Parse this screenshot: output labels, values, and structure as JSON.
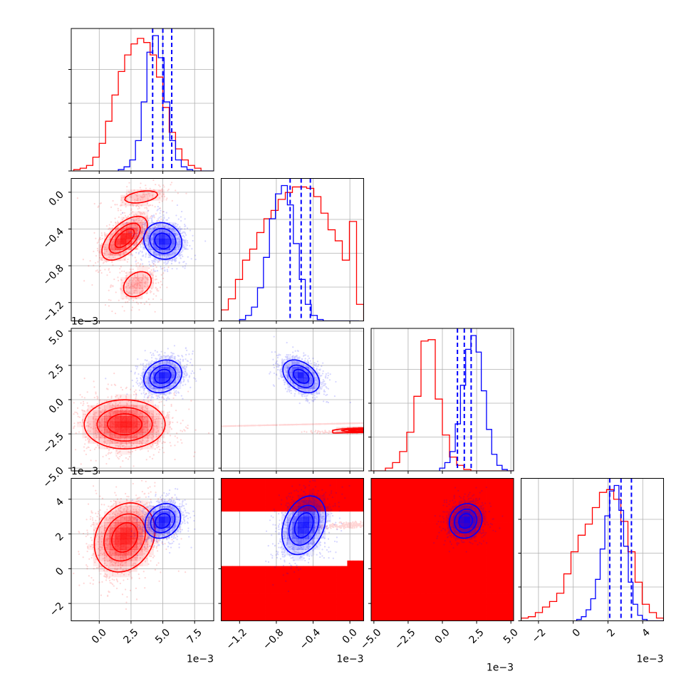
{
  "chart_data": {
    "type": "corner",
    "colors": {
      "red_series": "#ff0000",
      "blue_series": "#0000ff",
      "grid": "#b0b0b0",
      "frame": "#000000"
    },
    "grid": true,
    "n_params": 4,
    "params": [
      {
        "range": [
          -2.2,
          9.0
        ],
        "ticks": [
          0.0,
          2.5,
          5.0,
          7.5
        ],
        "tick_labels": [
          "0.0",
          "2.5",
          "5.0",
          "7.5"
        ],
        "offset": "1e−3"
      },
      {
        "range": [
          -1.4,
          0.15
        ],
        "ticks": [
          -1.2,
          -0.8,
          -0.4,
          0.0
        ],
        "tick_labels": [
          "−1.2",
          "−0.8",
          "−0.4",
          "0.0"
        ],
        "offset": "1e−3"
      },
      {
        "range": [
          -5.2,
          5.2
        ],
        "ticks": [
          -5.0,
          -2.5,
          0.0,
          2.5,
          5.0
        ],
        "tick_labels": [
          "−5.0",
          "−2.5",
          "0.0",
          "2.5",
          "5.0"
        ],
        "offset": "1e−3"
      },
      {
        "range": [
          -3.0,
          5.2
        ],
        "ticks": [
          -2,
          0,
          2,
          4
        ],
        "tick_labels": [
          "−2",
          "0",
          "2",
          "4"
        ],
        "offset": "1e−3"
      }
    ],
    "series": [
      {
        "color": "#ff0000",
        "means": [
          2.0,
          -0.55,
          -1.8,
          1.8
        ],
        "sds": [
          1.3,
          0.3,
          0.9,
          1.15
        ],
        "hist": [
          {
            "start": -2.0,
            "width": 0.5,
            "counts": [
              1,
              2,
              4,
              10,
              20,
              36,
              55,
              72,
              84,
              92,
              96,
              93,
              84,
              68,
              46,
              28,
              16,
              8,
              4,
              2
            ]
          },
          {
            "start": -1.4,
            "width": 0.0775,
            "counts": [
              8,
              16,
              30,
              44,
              52,
              64,
              74,
              80,
              88,
              93,
              97,
              97,
              96,
              90,
              78,
              66,
              58,
              44,
              72,
              12
            ]
          },
          {
            "start": -5.2,
            "width": 0.52,
            "counts": [
              0,
              0,
              2,
              6,
              14,
              28,
              54,
              94,
              95,
              52,
              26,
              10,
              4,
              1,
              0,
              0,
              0,
              0,
              0,
              0
            ]
          },
          {
            "start": -3.0,
            "width": 0.41,
            "counts": [
              2,
              3,
              6,
              10,
              14,
              20,
              34,
              50,
              62,
              70,
              82,
              93,
              95,
              88,
              72,
              50,
              28,
              12,
              6,
              2
            ]
          }
        ],
        "pairs": [
          {
            "i": 0,
            "j": 1,
            "peaks": [
              [
                2.0,
                -0.5,
                1.0,
                0.9,
                0.12,
                0.6
              ],
              [
                3.3,
                -0.05,
                0.25,
                1.2,
                0.06,
                0.4
              ],
              [
                3.0,
                -1.0,
                0.35,
                0.8,
                0.1,
                0.3
              ]
            ]
          },
          {
            "i": 0,
            "j": 2,
            "peaks": [
              [
                2.0,
                -1.8,
                1.0,
                1.6,
                0.9,
                0.0
              ]
            ]
          },
          {
            "i": 0,
            "j": 3,
            "peaks": [
              [
                2.0,
                1.8,
                1.0,
                1.2,
                1.0,
                0.2
              ]
            ]
          },
          {
            "i": 1,
            "j": 2,
            "peaks": [
              [
                -0.45,
                -1.8,
                1.0,
                0.6,
                0.09,
                1.0,
                0.1
              ],
              [
                0.05,
                -2.3,
                0.35,
                0.18,
                0.06,
                0.5
              ]
            ]
          },
          {
            "i": 1,
            "j": 3,
            "peaks": [
              [
                -0.45,
                1.8,
                1.0,
                0.6,
                0.09,
                1.1,
                0.3
              ],
              [
                0.0,
                2.5,
                0.4,
                0.15,
                0.07,
                0.5
              ]
            ]
          },
          {
            "i": 2,
            "j": 3,
            "peaks": [
              [
                -2.0,
                1.9,
                1.0,
                1.0,
                0.9,
                1.0,
                0.05
              ]
            ]
          }
        ]
      },
      {
        "color": "#0000ff",
        "means": [
          5.0,
          -0.55,
          1.7,
          2.8
        ],
        "sds": [
          0.65,
          0.12,
          0.6,
          0.45
        ],
        "quantiles": [
          [
            4.2,
            5.0,
            5.7
          ],
          [
            -0.65,
            -0.53,
            -0.43
          ],
          [
            1.1,
            1.6,
            2.1
          ],
          [
            2.1,
            2.75,
            3.35
          ]
        ],
        "hist": [
          {
            "start": 1.5,
            "width": 0.45,
            "counts": [
              1,
              3,
              8,
              22,
              50,
              86,
              98,
              82,
              50,
              22,
              8,
              3,
              1,
              0,
              0,
              0,
              0,
              0,
              0,
              0
            ]
          },
          {
            "start": -1.2,
            "width": 0.065,
            "counts": [
              1,
              4,
              10,
              24,
              46,
              74,
              92,
              98,
              84,
              56,
              30,
              12,
              4,
              1,
              0,
              0,
              0,
              0,
              0,
              0
            ]
          },
          {
            "start": -0.2,
            "width": 0.38,
            "counts": [
              2,
              6,
              14,
              34,
              62,
              88,
              98,
              86,
              58,
              30,
              12,
              4,
              1,
              0,
              0,
              0,
              0,
              0,
              0,
              0
            ]
          },
          {
            "start": 0.2,
            "width": 0.27,
            "counts": [
              1,
              3,
              8,
              16,
              30,
              52,
              76,
              94,
              98,
              80,
              54,
              28,
              12,
              4,
              1,
              0,
              0,
              0,
              0,
              0
            ]
          }
        ],
        "pairs": [
          {
            "i": 0,
            "j": 1,
            "peaks": [
              [
                5.0,
                -0.53,
                1.0,
                0.75,
                0.1,
                -0.1
              ]
            ]
          },
          {
            "i": 0,
            "j": 2,
            "peaks": [
              [
                5.0,
                1.7,
                1.0,
                0.75,
                0.6,
                0.2
              ]
            ]
          },
          {
            "i": 0,
            "j": 3,
            "peaks": [
              [
                5.0,
                2.75,
                1.0,
                0.7,
                0.5,
                0.2
              ]
            ]
          },
          {
            "i": 1,
            "j": 2,
            "peaks": [
              [
                -0.53,
                1.7,
                1.0,
                0.1,
                0.6,
                -0.4
              ]
            ]
          },
          {
            "i": 1,
            "j": 3,
            "peaks": [
              [
                -0.5,
                2.5,
                1.0,
                0.12,
                0.85,
                0.3
              ]
            ]
          },
          {
            "i": 2,
            "j": 3,
            "peaks": [
              [
                1.7,
                2.75,
                1.0,
                0.6,
                0.5,
                0.1
              ]
            ]
          }
        ]
      }
    ]
  }
}
